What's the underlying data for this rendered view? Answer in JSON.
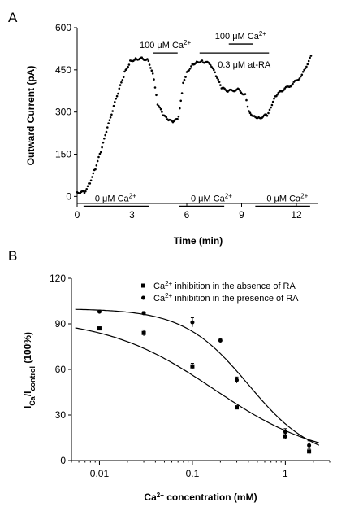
{
  "chart_data": [
    {
      "type": "scatter",
      "panel_label": "A",
      "xlabel": "Time (min)",
      "ylabel": "Outward Current (pA)",
      "xlim": [
        0,
        13.2
      ],
      "ylim": [
        -25,
        600
      ],
      "xticks": [
        {
          "v": 0,
          "label": "0"
        },
        {
          "v": 3,
          "label": "3"
        },
        {
          "v": 6,
          "label": "6"
        },
        {
          "v": 9,
          "label": "9"
        },
        {
          "v": 12,
          "label": "12"
        }
      ],
      "yticks": [
        {
          "v": 0,
          "label": "0"
        },
        {
          "v": 150,
          "label": "150"
        },
        {
          "v": 300,
          "label": "300"
        },
        {
          "v": 450,
          "label": "450"
        },
        {
          "v": 600,
          "label": "600"
        }
      ],
      "trace_points": [
        [
          0.0,
          15
        ],
        [
          0.4,
          15
        ],
        [
          0.7,
          50
        ],
        [
          1.0,
          100
        ],
        [
          1.3,
          160
        ],
        [
          1.6,
          230
        ],
        [
          2.0,
          320
        ],
        [
          2.3,
          380
        ],
        [
          2.6,
          440
        ],
        [
          2.9,
          480
        ],
        [
          3.2,
          490
        ],
        [
          3.6,
          490
        ],
        [
          3.9,
          485
        ],
        [
          4.2,
          420
        ],
        [
          4.4,
          330
        ],
        [
          4.7,
          290
        ],
        [
          5.0,
          270
        ],
        [
          5.3,
          265
        ],
        [
          5.55,
          280
        ],
        [
          5.8,
          400
        ],
        [
          6.0,
          440
        ],
        [
          6.3,
          470
        ],
        [
          6.6,
          480
        ],
        [
          6.9,
          480
        ],
        [
          7.3,
          470
        ],
        [
          7.6,
          430
        ],
        [
          7.9,
          385
        ],
        [
          8.3,
          375
        ],
        [
          8.8,
          380
        ],
        [
          9.2,
          360
        ],
        [
          9.4,
          300
        ],
        [
          9.7,
          285
        ],
        [
          10.0,
          280
        ],
        [
          10.4,
          290
        ],
        [
          10.6,
          320
        ],
        [
          10.9,
          360
        ],
        [
          11.3,
          380
        ],
        [
          11.8,
          400
        ],
        [
          12.3,
          430
        ],
        [
          12.8,
          500
        ]
      ],
      "bars": [
        {
          "x0": 0.35,
          "x1": 3.95,
          "y": -35,
          "label": "0 μM Ca2+",
          "label_pos": "above-left"
        },
        {
          "x0": 5.6,
          "x1": 8.05,
          "y": -35,
          "label": "0 μM Ca2+",
          "label_pos": "above-left"
        },
        {
          "x0": 9.75,
          "x1": 12.75,
          "y": -35,
          "label": "0 μM Ca2+",
          "label_pos": "above-left"
        },
        {
          "x0": 4.15,
          "x1": 5.5,
          "y": 510,
          "label": "100 μM Ca2+",
          "label_pos": "above-center"
        },
        {
          "x0": 6.7,
          "x1": 10.5,
          "y": 510,
          "label": "",
          "label_pos": "none"
        },
        {
          "x0": 8.3,
          "x1": 9.6,
          "y": 542,
          "label": "100 μM Ca2+",
          "label_pos": "above-center"
        }
      ],
      "annotations": [
        {
          "text": "0.3 μM at-RA",
          "x": 7.7,
          "y": 470
        }
      ]
    },
    {
      "type": "scatter",
      "panel_label": "B",
      "xlabel": "Ca2+ concentration (mM)",
      "ylabel": "ICa/Icontrol (100%)",
      "xscale": "log",
      "xlim": [
        0.005,
        3
      ],
      "ylim": [
        0,
        120
      ],
      "xticks": [
        {
          "v": 0.01,
          "label": "0.01"
        },
        {
          "v": 0.1,
          "label": "0.1"
        },
        {
          "v": 1,
          "label": "1"
        }
      ],
      "yticks": [
        {
          "v": 0,
          "label": "0"
        },
        {
          "v": 30,
          "label": "30"
        },
        {
          "v": 60,
          "label": "60"
        },
        {
          "v": 90,
          "label": "90"
        },
        {
          "v": 120,
          "label": "120"
        }
      ],
      "legend_position": "top-right",
      "series": [
        {
          "name": "Ca2+ inhibition in the absence of RA",
          "marker": "square",
          "x": [
            0.01,
            0.03,
            0.1,
            0.3,
            1,
            1.8
          ],
          "y": [
            87,
            84,
            62,
            35,
            16,
            6
          ],
          "err": [
            1,
            2,
            2,
            1,
            2,
            2
          ],
          "fit": {
            "top": 94,
            "bottom": 0,
            "ic50": 0.17,
            "hill": 0.75
          }
        },
        {
          "name": "Ca2+ inhibition in the presence of RA",
          "marker": "circle",
          "x": [
            0.01,
            0.03,
            0.1,
            0.2,
            0.3,
            1,
            1.8
          ],
          "y": [
            98,
            97,
            91,
            79,
            53,
            19,
            10
          ],
          "err": [
            1,
            1,
            3,
            1,
            2,
            2,
            3
          ],
          "fit": {
            "top": 100,
            "bottom": 0,
            "ic50": 0.4,
            "hill": 1.25
          }
        }
      ]
    }
  ]
}
